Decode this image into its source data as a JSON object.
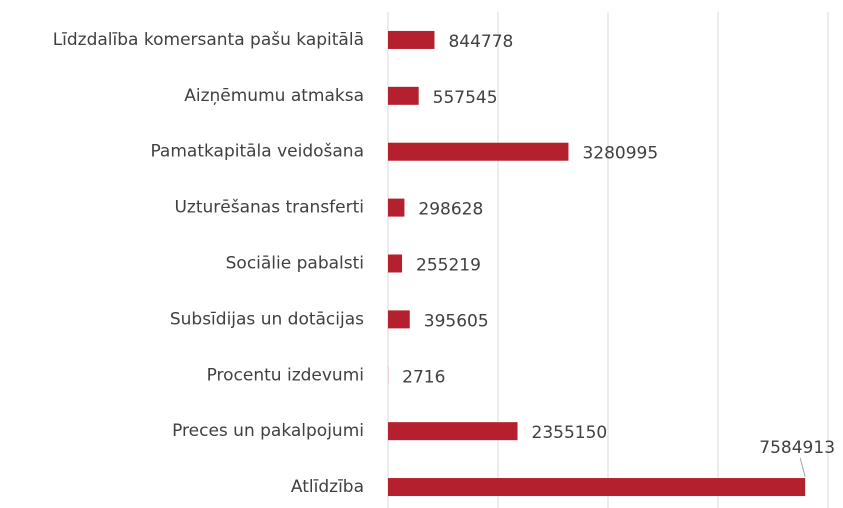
{
  "chart_data": {
    "type": "bar",
    "orientation": "horizontal",
    "categories": [
      "Līdzdalība komersanta pašu kapitālā",
      "Aizņēmumu atmaksa",
      "Pamatkapitāla veidošana",
      "Uzturēšanas transferti",
      "Sociālie pabalsti",
      "Subsīdijas un dotācijas",
      "Procentu izdevumi",
      "Preces un pakalpojumi",
      "Atlīdzība"
    ],
    "values": [
      844778,
      557545,
      3280995,
      298628,
      255219,
      395605,
      2716,
      2355150,
      7584913
    ],
    "color": "#b5202e",
    "xlim": [
      0,
      8000000
    ],
    "xticks": [
      0,
      2000000,
      4000000,
      6000000,
      8000000
    ],
    "grid": true
  }
}
